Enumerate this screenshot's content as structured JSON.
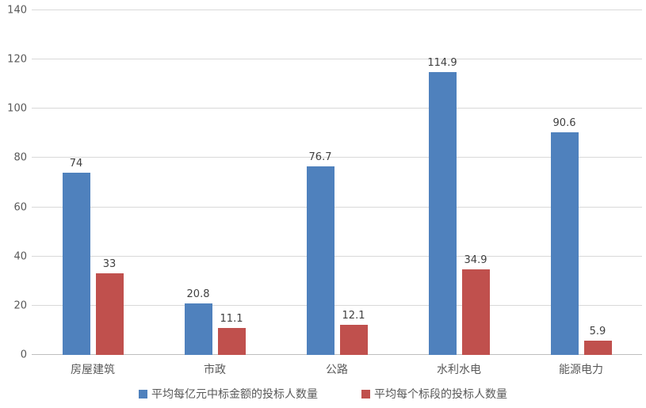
{
  "chart_data": {
    "type": "bar",
    "title": "",
    "xlabel": "",
    "ylabel": "",
    "categories": [
      "房屋建筑",
      "市政",
      "公路",
      "水利水电",
      "能源电力"
    ],
    "series": [
      {
        "name": "平均每亿元中标金额的投标人数量",
        "color": "#4F81BD",
        "values": [
          74,
          20.8,
          76.7,
          114.9,
          90.6
        ],
        "labels": [
          "74",
          "20.8",
          "76.7",
          "114.9",
          "90.6"
        ]
      },
      {
        "name": "平均每个标段的投标人数量",
        "color": "#C0504D",
        "values": [
          33,
          11.1,
          12.1,
          34.9,
          5.9
        ],
        "labels": [
          "33",
          "11.1",
          "12.1",
          "34.9",
          "5.9"
        ]
      }
    ],
    "ylim": [
      0,
      140
    ],
    "yticks": [
      0,
      20,
      40,
      60,
      80,
      100,
      120,
      140
    ],
    "grid": true,
    "legend_position": "bottom"
  },
  "colors": {
    "background": "#ffffff",
    "gridline": "#d9d9d9",
    "axis_line": "#bfbfbf",
    "tick_label": "#595959",
    "data_label": "#404040",
    "series_blue": "#4F81BD",
    "series_red": "#C0504D"
  }
}
